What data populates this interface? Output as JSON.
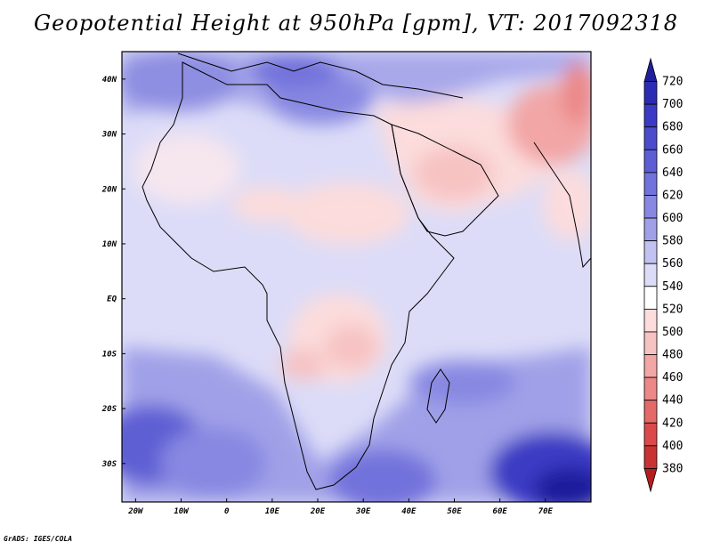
{
  "title": "Geopotential Height at 950hPa [gpm], VT: 2017092318",
  "credit": "GrADS: IGES/COLA",
  "map": {
    "projection": "latlon",
    "lon_range": [
      -23,
      80
    ],
    "lat_range": [
      -37,
      45
    ],
    "lon_ticks": [
      {
        "value": -20,
        "label": "20W"
      },
      {
        "value": -10,
        "label": "10W"
      },
      {
        "value": 0,
        "label": "0"
      },
      {
        "value": 10,
        "label": "10E"
      },
      {
        "value": 20,
        "label": "20E"
      },
      {
        "value": 30,
        "label": "30E"
      },
      {
        "value": 40,
        "label": "40E"
      },
      {
        "value": 50,
        "label": "50E"
      },
      {
        "value": 60,
        "label": "60E"
      },
      {
        "value": 70,
        "label": "70E"
      }
    ],
    "lat_ticks": [
      {
        "value": 40,
        "label": "40N"
      },
      {
        "value": 30,
        "label": "30N"
      },
      {
        "value": 20,
        "label": "20N"
      },
      {
        "value": 10,
        "label": "10N"
      },
      {
        "value": 0,
        "label": "EQ"
      },
      {
        "value": -10,
        "label": "10S"
      },
      {
        "value": -20,
        "label": "20S"
      },
      {
        "value": -30,
        "label": "30S"
      }
    ]
  },
  "colorbar": {
    "levels": [
      "720",
      "700",
      "680",
      "660",
      "640",
      "620",
      "600",
      "580",
      "560",
      "540",
      "520",
      "500",
      "480",
      "460",
      "440",
      "420",
      "400",
      "380"
    ],
    "colors": [
      "#1f1f9c",
      "#2b2bb4",
      "#3a3ac4",
      "#4b4bcc",
      "#5e5ed4",
      "#7272dc",
      "#8888e2",
      "#a0a0e8",
      "#c2c2f0",
      "#dcdcf8",
      "#ffffff",
      "#fcdcdc",
      "#f7c2c2",
      "#f2a6a6",
      "#ec8888",
      "#e46a6a",
      "#da4a4a",
      "#c83232",
      "#b41e1e"
    ]
  }
}
